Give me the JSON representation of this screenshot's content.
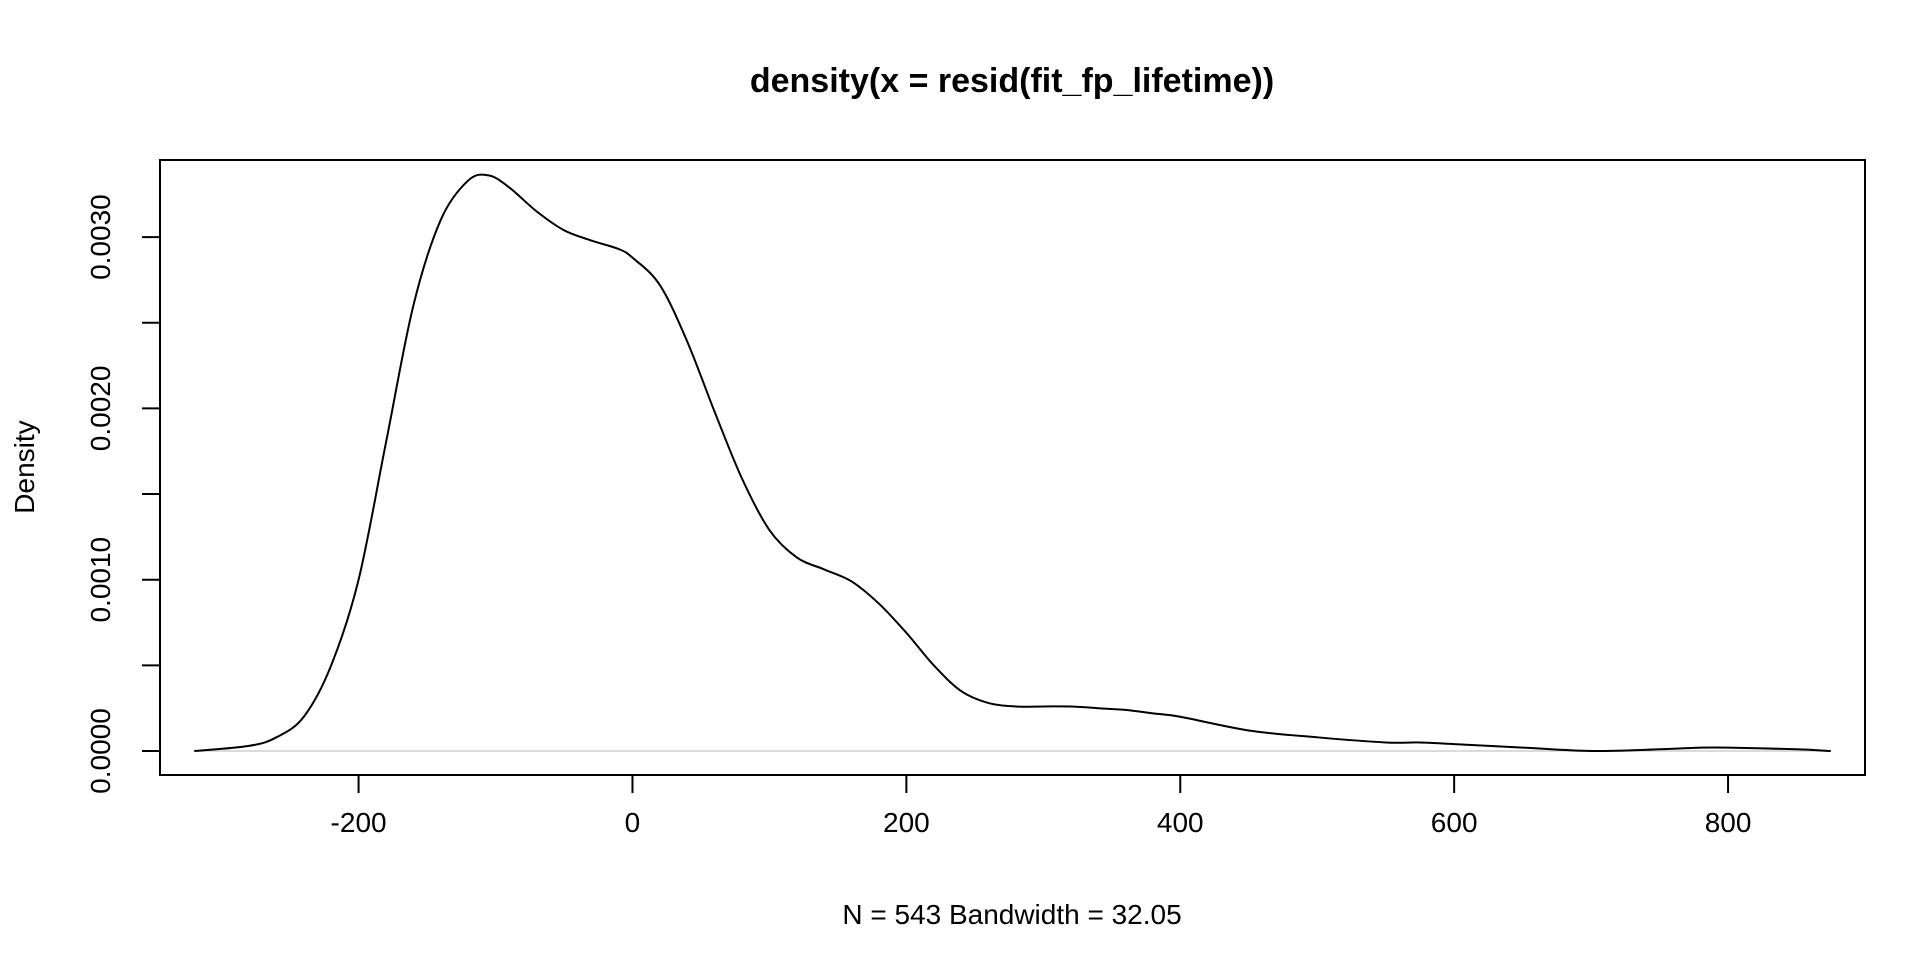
{
  "chart_data": {
    "type": "line",
    "title": "density(x = resid(fit_fp_lifetime))",
    "xlabel": "N = 543   Bandwidth = 32.05",
    "ylabel": "Density",
    "xlim": [
      -345,
      900
    ],
    "ylim": [
      -0.00014,
      0.00345
    ],
    "x_ticks": [
      -200,
      0,
      200,
      400,
      600,
      800
    ],
    "x_tick_labels": [
      "-200",
      "0",
      "200",
      "400",
      "600",
      "800"
    ],
    "y_ticks": [
      0.0,
      0.0005,
      0.001,
      0.0015,
      0.002,
      0.0025,
      0.003
    ],
    "y_tick_labels": [
      "0.0000",
      "",
      "0.0010",
      "",
      "0.0020",
      "",
      "0.0030"
    ],
    "grid": false,
    "zero_line": true,
    "colors": {
      "curve": "#000000",
      "zero_line": "#cfcfcf",
      "frame": "#000000"
    },
    "series": [
      {
        "x": [
          -320,
          -280,
          -260,
          -240,
          -220,
          -200,
          -180,
          -160,
          -140,
          -120,
          -105,
          -90,
          -70,
          -50,
          -30,
          -10,
          0,
          20,
          40,
          60,
          80,
          100,
          120,
          140,
          160,
          180,
          200,
          220,
          240,
          260,
          280,
          300,
          320,
          340,
          360,
          380,
          400,
          450,
          500,
          550,
          575,
          600,
          650,
          700,
          750,
          780,
          800,
          850,
          875
        ],
        "y": [
          0.0,
          3e-05,
          8e-05,
          0.0002,
          0.0005,
          0.001,
          0.0018,
          0.0026,
          0.0031,
          0.00333,
          0.00336,
          0.00329,
          0.00315,
          0.00304,
          0.00298,
          0.00293,
          0.00288,
          0.00272,
          0.00239,
          0.00198,
          0.00159,
          0.00129,
          0.00113,
          0.00106,
          0.00099,
          0.00086,
          0.00069,
          0.0005,
          0.00035,
          0.00028,
          0.00026,
          0.00026,
          0.00026,
          0.00025,
          0.00024,
          0.00022,
          0.0002,
          0.00012,
          8e-05,
          5e-05,
          5e-05,
          4e-05,
          2e-05,
          0.0,
          1e-05,
          2e-05,
          2e-05,
          1e-05,
          0.0
        ]
      }
    ]
  }
}
